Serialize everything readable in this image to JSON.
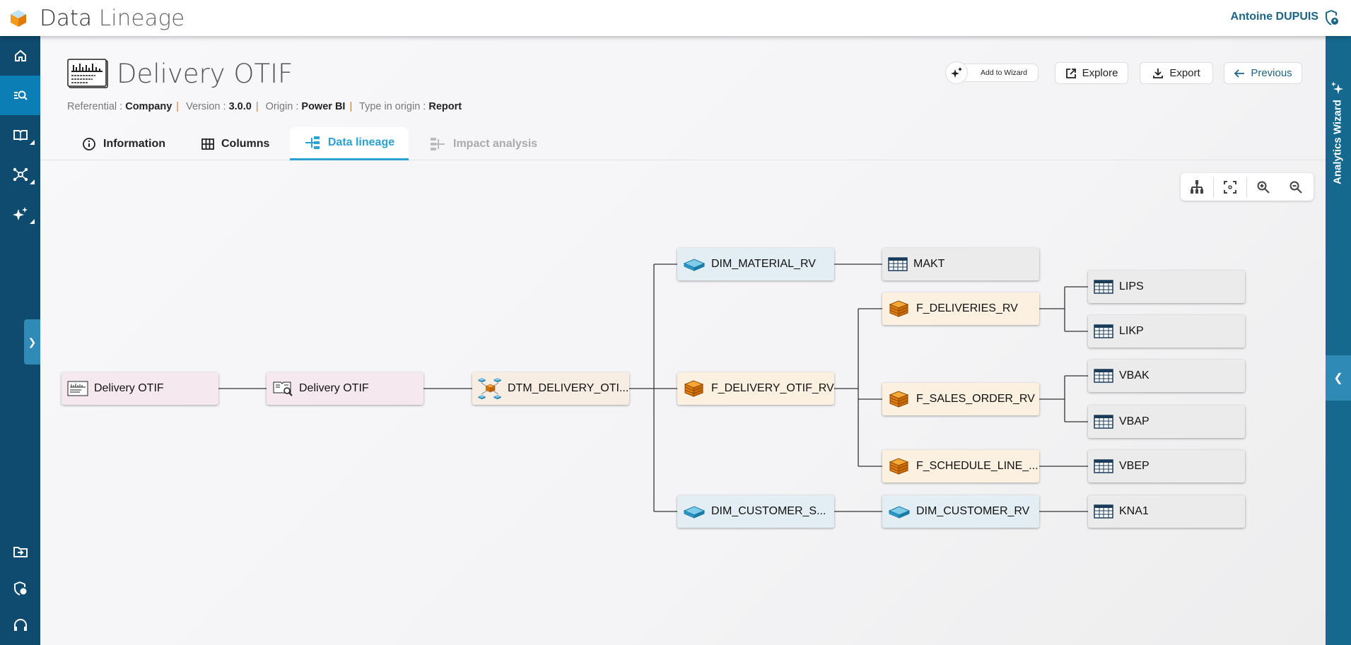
{
  "app": {
    "title_part1": "Data",
    "title_part2": "Lineage",
    "user": "Antoine DUPUIS"
  },
  "sidebar": {
    "items": [
      {
        "name": "home"
      },
      {
        "name": "search",
        "active": true
      },
      {
        "name": "glossary"
      },
      {
        "name": "network"
      },
      {
        "name": "ai"
      },
      {
        "name": "import"
      },
      {
        "name": "admin"
      },
      {
        "name": "support"
      }
    ]
  },
  "page": {
    "title": "Delivery OTIF",
    "meta": {
      "referential_label": "Referential :",
      "referential": "Company",
      "version_label": "Version :",
      "version": "3.0.0",
      "origin_label": "Origin :",
      "origin": "Power BI",
      "type_label": "Type in origin :",
      "type": "Report"
    }
  },
  "actions": {
    "add_to_wizard": "Add to Wizard",
    "explore": "Explore",
    "export": "Export",
    "previous": "Previous"
  },
  "tabs": [
    {
      "label": "Information"
    },
    {
      "label": "Columns"
    },
    {
      "label": "Data lineage",
      "active": true
    },
    {
      "label": "Impact analysis",
      "disabled": true
    }
  ],
  "right_panel": {
    "title": "Analytics Wizard"
  },
  "colors": {
    "sidebar": "#0f4b6e",
    "accent": "#2aa0d3",
    "right_panel": "#15698f"
  },
  "lineage": {
    "nodes": [
      {
        "label": "Delivery OTIF",
        "type": "report"
      },
      {
        "label": "Delivery OTIF",
        "type": "report-usage"
      },
      {
        "label": "DTM_DELIVERY_OTI...",
        "type": "datamart"
      },
      {
        "label": "DIM_MATERIAL_RV",
        "type": "dimension"
      },
      {
        "label": "F_DELIVERY_OTIF_RV",
        "type": "fact"
      },
      {
        "label": "DIM_CUSTOMER_S...",
        "type": "dimension"
      },
      {
        "label": "MAKT",
        "type": "table"
      },
      {
        "label": "F_DELIVERIES_RV",
        "type": "fact"
      },
      {
        "label": "F_SALES_ORDER_RV",
        "type": "fact"
      },
      {
        "label": "F_SCHEDULE_LINE_...",
        "type": "fact"
      },
      {
        "label": "DIM_CUSTOMER_RV",
        "type": "dimension"
      },
      {
        "label": "LIPS",
        "type": "table"
      },
      {
        "label": "LIKP",
        "type": "table"
      },
      {
        "label": "VBAK",
        "type": "table"
      },
      {
        "label": "VBAP",
        "type": "table"
      },
      {
        "label": "VBEP",
        "type": "table"
      },
      {
        "label": "KNA1",
        "type": "table"
      }
    ]
  }
}
